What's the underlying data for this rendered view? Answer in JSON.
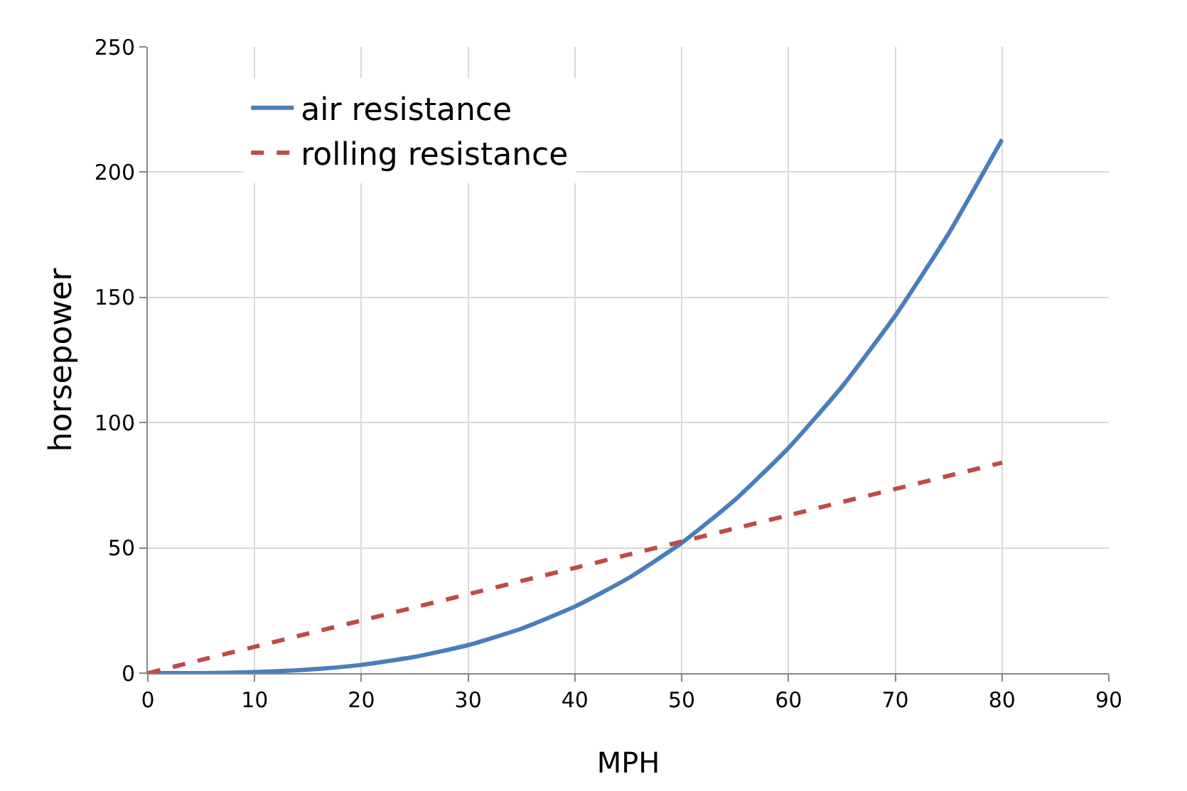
{
  "chart_data": {
    "type": "line",
    "xlabel": "MPH",
    "ylabel": "horsepower",
    "x": [
      0,
      5,
      10,
      15,
      20,
      25,
      30,
      35,
      40,
      45,
      50,
      55,
      60,
      65,
      70,
      75,
      80
    ],
    "series": [
      {
        "name": "air resistance",
        "color": "#4a7ebb",
        "line_style": "solid",
        "values": [
          0,
          0,
          0.4,
          1.4,
          3.3,
          6.5,
          11.2,
          17.8,
          26.6,
          37.9,
          52,
          69.2,
          89.9,
          114.3,
          142.7,
          175.5,
          213
        ]
      },
      {
        "name": "rolling resistance",
        "color": "#be4b48",
        "line_style": "dashed",
        "values": [
          0,
          5.3,
          10.5,
          15.8,
          21,
          26.3,
          31.5,
          36.8,
          42,
          47.3,
          52.5,
          57.8,
          63,
          68.3,
          73.5,
          78.8,
          84
        ]
      }
    ],
    "xlim": [
      0,
      90
    ],
    "xticks": [
      0,
      10,
      20,
      30,
      40,
      50,
      60,
      70,
      80,
      90
    ],
    "ylim": [
      0,
      250
    ],
    "yticks": [
      0,
      50,
      100,
      150,
      200,
      250
    ],
    "grid": true,
    "legend": "top left",
    "marker": "none"
  }
}
